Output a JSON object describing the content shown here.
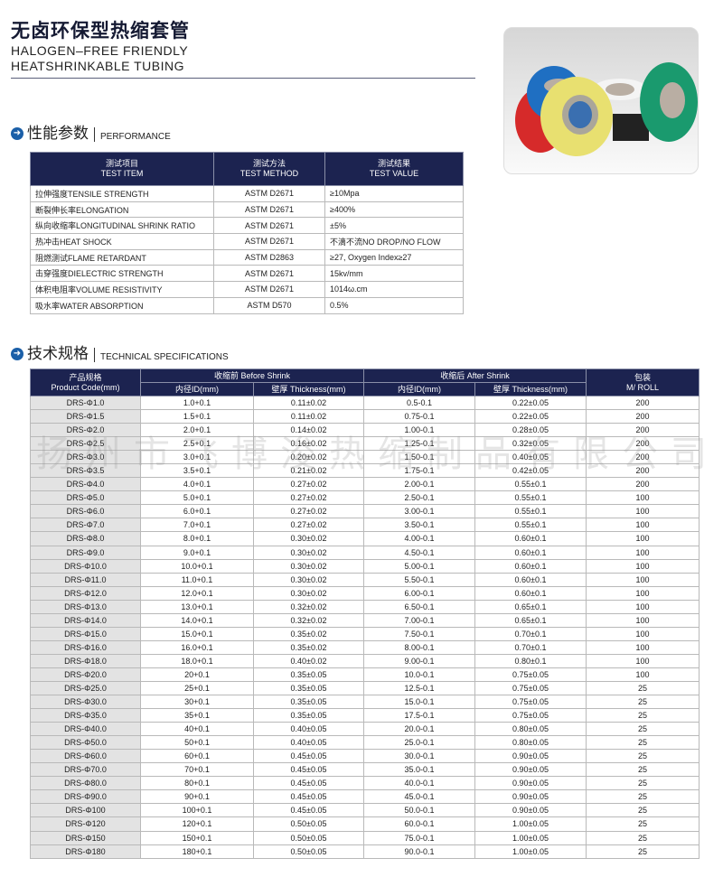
{
  "header": {
    "title_cn": "无卤环保型热缩套管",
    "title_en_line1": "HALOGEN–FREE FRIENDLY",
    "title_en_line2": "HEATSHRINKABLE TUBING"
  },
  "performance": {
    "heading_cn": "性能参数",
    "heading_en": "PERFORMANCE",
    "columns": [
      {
        "cn": "测试项目",
        "en": "TEST ITEM"
      },
      {
        "cn": "测试方法",
        "en": "TEST METHOD"
      },
      {
        "cn": "测试结果",
        "en": "TEST VALUE"
      }
    ],
    "rows": [
      [
        "拉伸强度TENSILE STRENGTH",
        "ASTM D2671",
        "≥10Mpa"
      ],
      [
        "断裂伸长率ELONGATION",
        "ASTM D2671",
        "≥400%"
      ],
      [
        "纵向收缩率LONGITUDINAL SHRINK RATIO",
        "ASTM D2671",
        "±5%"
      ],
      [
        "热冲击HEAT SHOCK",
        "ASTM D2671",
        "不滴不流NO DROP/NO FLOW"
      ],
      [
        "阻燃测试FLAME RETARDANT",
        "ASTM D2863",
        "≥27, Oxygen Index≥27"
      ],
      [
        "击穿强度DIELECTRIC STRENGTH",
        "ASTM D2671",
        "15kv/mm"
      ],
      [
        "体积电阻率VOLUME RESISTIVITY",
        "ASTM D2671",
        "1014ω.cm"
      ],
      [
        "吸水率WATER ABSORPTION",
        "ASTM D570",
        "0.5%"
      ]
    ]
  },
  "specs": {
    "heading_cn": "技术规格",
    "heading_en": "TECHNICAL SPECIFICATIONS",
    "header": {
      "code_cn": "产品规格",
      "code_en": "Product Code(mm)",
      "before": "收缩前 Before Shrink",
      "after": "收缩后 After Shrink",
      "pack_cn": "包装",
      "pack_en": "M/ ROLL",
      "id": "内径ID(mm)",
      "thickness": "壁厚 Thickness(mm)"
    },
    "rows": [
      [
        "DRS-Φ1.0",
        "1.0+0.1",
        "0.11±0.02",
        "0.5-0.1",
        "0.22±0.05",
        "200"
      ],
      [
        "DRS-Φ1.5",
        "1.5+0.1",
        "0.11±0.02",
        "0.75-0.1",
        "0.22±0.05",
        "200"
      ],
      [
        "DRS-Φ2.0",
        "2.0+0.1",
        "0.14±0.02",
        "1.00-0.1",
        "0.28±0.05",
        "200"
      ],
      [
        "DRS-Φ2.5",
        "2.5+0.1",
        "0.16±0.02",
        "1.25-0.1",
        "0.32±0.05",
        "200"
      ],
      [
        "DRS-Φ3.0",
        "3.0+0.1",
        "0.20±0.02",
        "1.50-0.1",
        "0.40±0.05",
        "200"
      ],
      [
        "DRS-Φ3.5",
        "3.5+0.1",
        "0.21±0.02",
        "1.75-0.1",
        "0.42±0.05",
        "200"
      ],
      [
        "DRS-Φ4.0",
        "4.0+0.1",
        "0.27±0.02",
        "2.00-0.1",
        "0.55±0.1",
        "200"
      ],
      [
        "DRS-Φ5.0",
        "5.0+0.1",
        "0.27±0.02",
        "2.50-0.1",
        "0.55±0.1",
        "100"
      ],
      [
        "DRS-Φ6.0",
        "6.0+0.1",
        "0.27±0.02",
        "3.00-0.1",
        "0.55±0.1",
        "100"
      ],
      [
        "DRS-Φ7.0",
        "7.0+0.1",
        "0.27±0.02",
        "3.50-0.1",
        "0.55±0.1",
        "100"
      ],
      [
        "DRS-Φ8.0",
        "8.0+0.1",
        "0.30±0.02",
        "4.00-0.1",
        "0.60±0.1",
        "100"
      ],
      [
        "DRS-Φ9.0",
        "9.0+0.1",
        "0.30±0.02",
        "4.50-0.1",
        "0.60±0.1",
        "100"
      ],
      [
        "DRS-Φ10.0",
        "10.0+0.1",
        "0.30±0.02",
        "5.00-0.1",
        "0.60±0.1",
        "100"
      ],
      [
        "DRS-Φ11.0",
        "11.0+0.1",
        "0.30±0.02",
        "5.50-0.1",
        "0.60±0.1",
        "100"
      ],
      [
        "DRS-Φ12.0",
        "12.0+0.1",
        "0.30±0.02",
        "6.00-0.1",
        "0.60±0.1",
        "100"
      ],
      [
        "DRS-Φ13.0",
        "13.0+0.1",
        "0.32±0.02",
        "6.50-0.1",
        "0.65±0.1",
        "100"
      ],
      [
        "DRS-Φ14.0",
        "14.0+0.1",
        "0.32±0.02",
        "7.00-0.1",
        "0.65±0.1",
        "100"
      ],
      [
        "DRS-Φ15.0",
        "15.0+0.1",
        "0.35±0.02",
        "7.50-0.1",
        "0.70±0.1",
        "100"
      ],
      [
        "DRS-Φ16.0",
        "16.0+0.1",
        "0.35±0.02",
        "8.00-0.1",
        "0.70±0.1",
        "100"
      ],
      [
        "DRS-Φ18.0",
        "18.0+0.1",
        "0.40±0.02",
        "9.00-0.1",
        "0.80±0.1",
        "100"
      ],
      [
        "DRS-Φ20.0",
        "20+0.1",
        "0.35±0.05",
        "10.0-0.1",
        "0.75±0.05",
        "100"
      ],
      [
        "DRS-Φ25.0",
        "25+0.1",
        "0.35±0.05",
        "12.5-0.1",
        "0.75±0.05",
        "25"
      ],
      [
        "DRS-Φ30.0",
        "30+0.1",
        "0.35±0.05",
        "15.0-0.1",
        "0.75±0.05",
        "25"
      ],
      [
        "DRS-Φ35.0",
        "35+0.1",
        "0.35±0.05",
        "17.5-0.1",
        "0.75±0.05",
        "25"
      ],
      [
        "DRS-Φ40.0",
        "40+0.1",
        "0.40±0.05",
        "20.0-0.1",
        "0.80±0.05",
        "25"
      ],
      [
        "DRS-Φ50.0",
        "50+0.1",
        "0.40±0.05",
        "25.0-0.1",
        "0.80±0.05",
        "25"
      ],
      [
        "DRS-Φ60.0",
        "60+0.1",
        "0.45±0.05",
        "30.0-0.1",
        "0.90±0.05",
        "25"
      ],
      [
        "DRS-Φ70.0",
        "70+0.1",
        "0.45±0.05",
        "35.0-0.1",
        "0.90±0.05",
        "25"
      ],
      [
        "DRS-Φ80.0",
        "80+0.1",
        "0.45±0.05",
        "40.0-0.1",
        "0.90±0.05",
        "25"
      ],
      [
        "DRS-Φ90.0",
        "90+0.1",
        "0.45±0.05",
        "45.0-0.1",
        "0.90±0.05",
        "25"
      ],
      [
        "DRS-Φ100",
        "100+0.1",
        "0.45±0.05",
        "50.0-0.1",
        "0.90±0.05",
        "25"
      ],
      [
        "DRS-Φ120",
        "120+0.1",
        "0.50±0.05",
        "60.0-0.1",
        "1.00±0.05",
        "25"
      ],
      [
        "DRS-Φ150",
        "150+0.1",
        "0.50±0.05",
        "75.0-0.1",
        "1.00±0.05",
        "25"
      ],
      [
        "DRS-Φ180",
        "180+0.1",
        "0.50±0.05",
        "90.0-0.1",
        "1.00±0.05",
        "25"
      ]
    ]
  },
  "watermark": "扬州市飞博浚热缩制品有限公司",
  "colors": {
    "header_bg": "#1c2350",
    "code_col_bg": "#e3e3e3",
    "tube_colors": [
      "#d62a2a",
      "#1f6fc2",
      "#e8e070",
      "#f4f4f4",
      "#1a9a6e",
      "#222222"
    ]
  }
}
